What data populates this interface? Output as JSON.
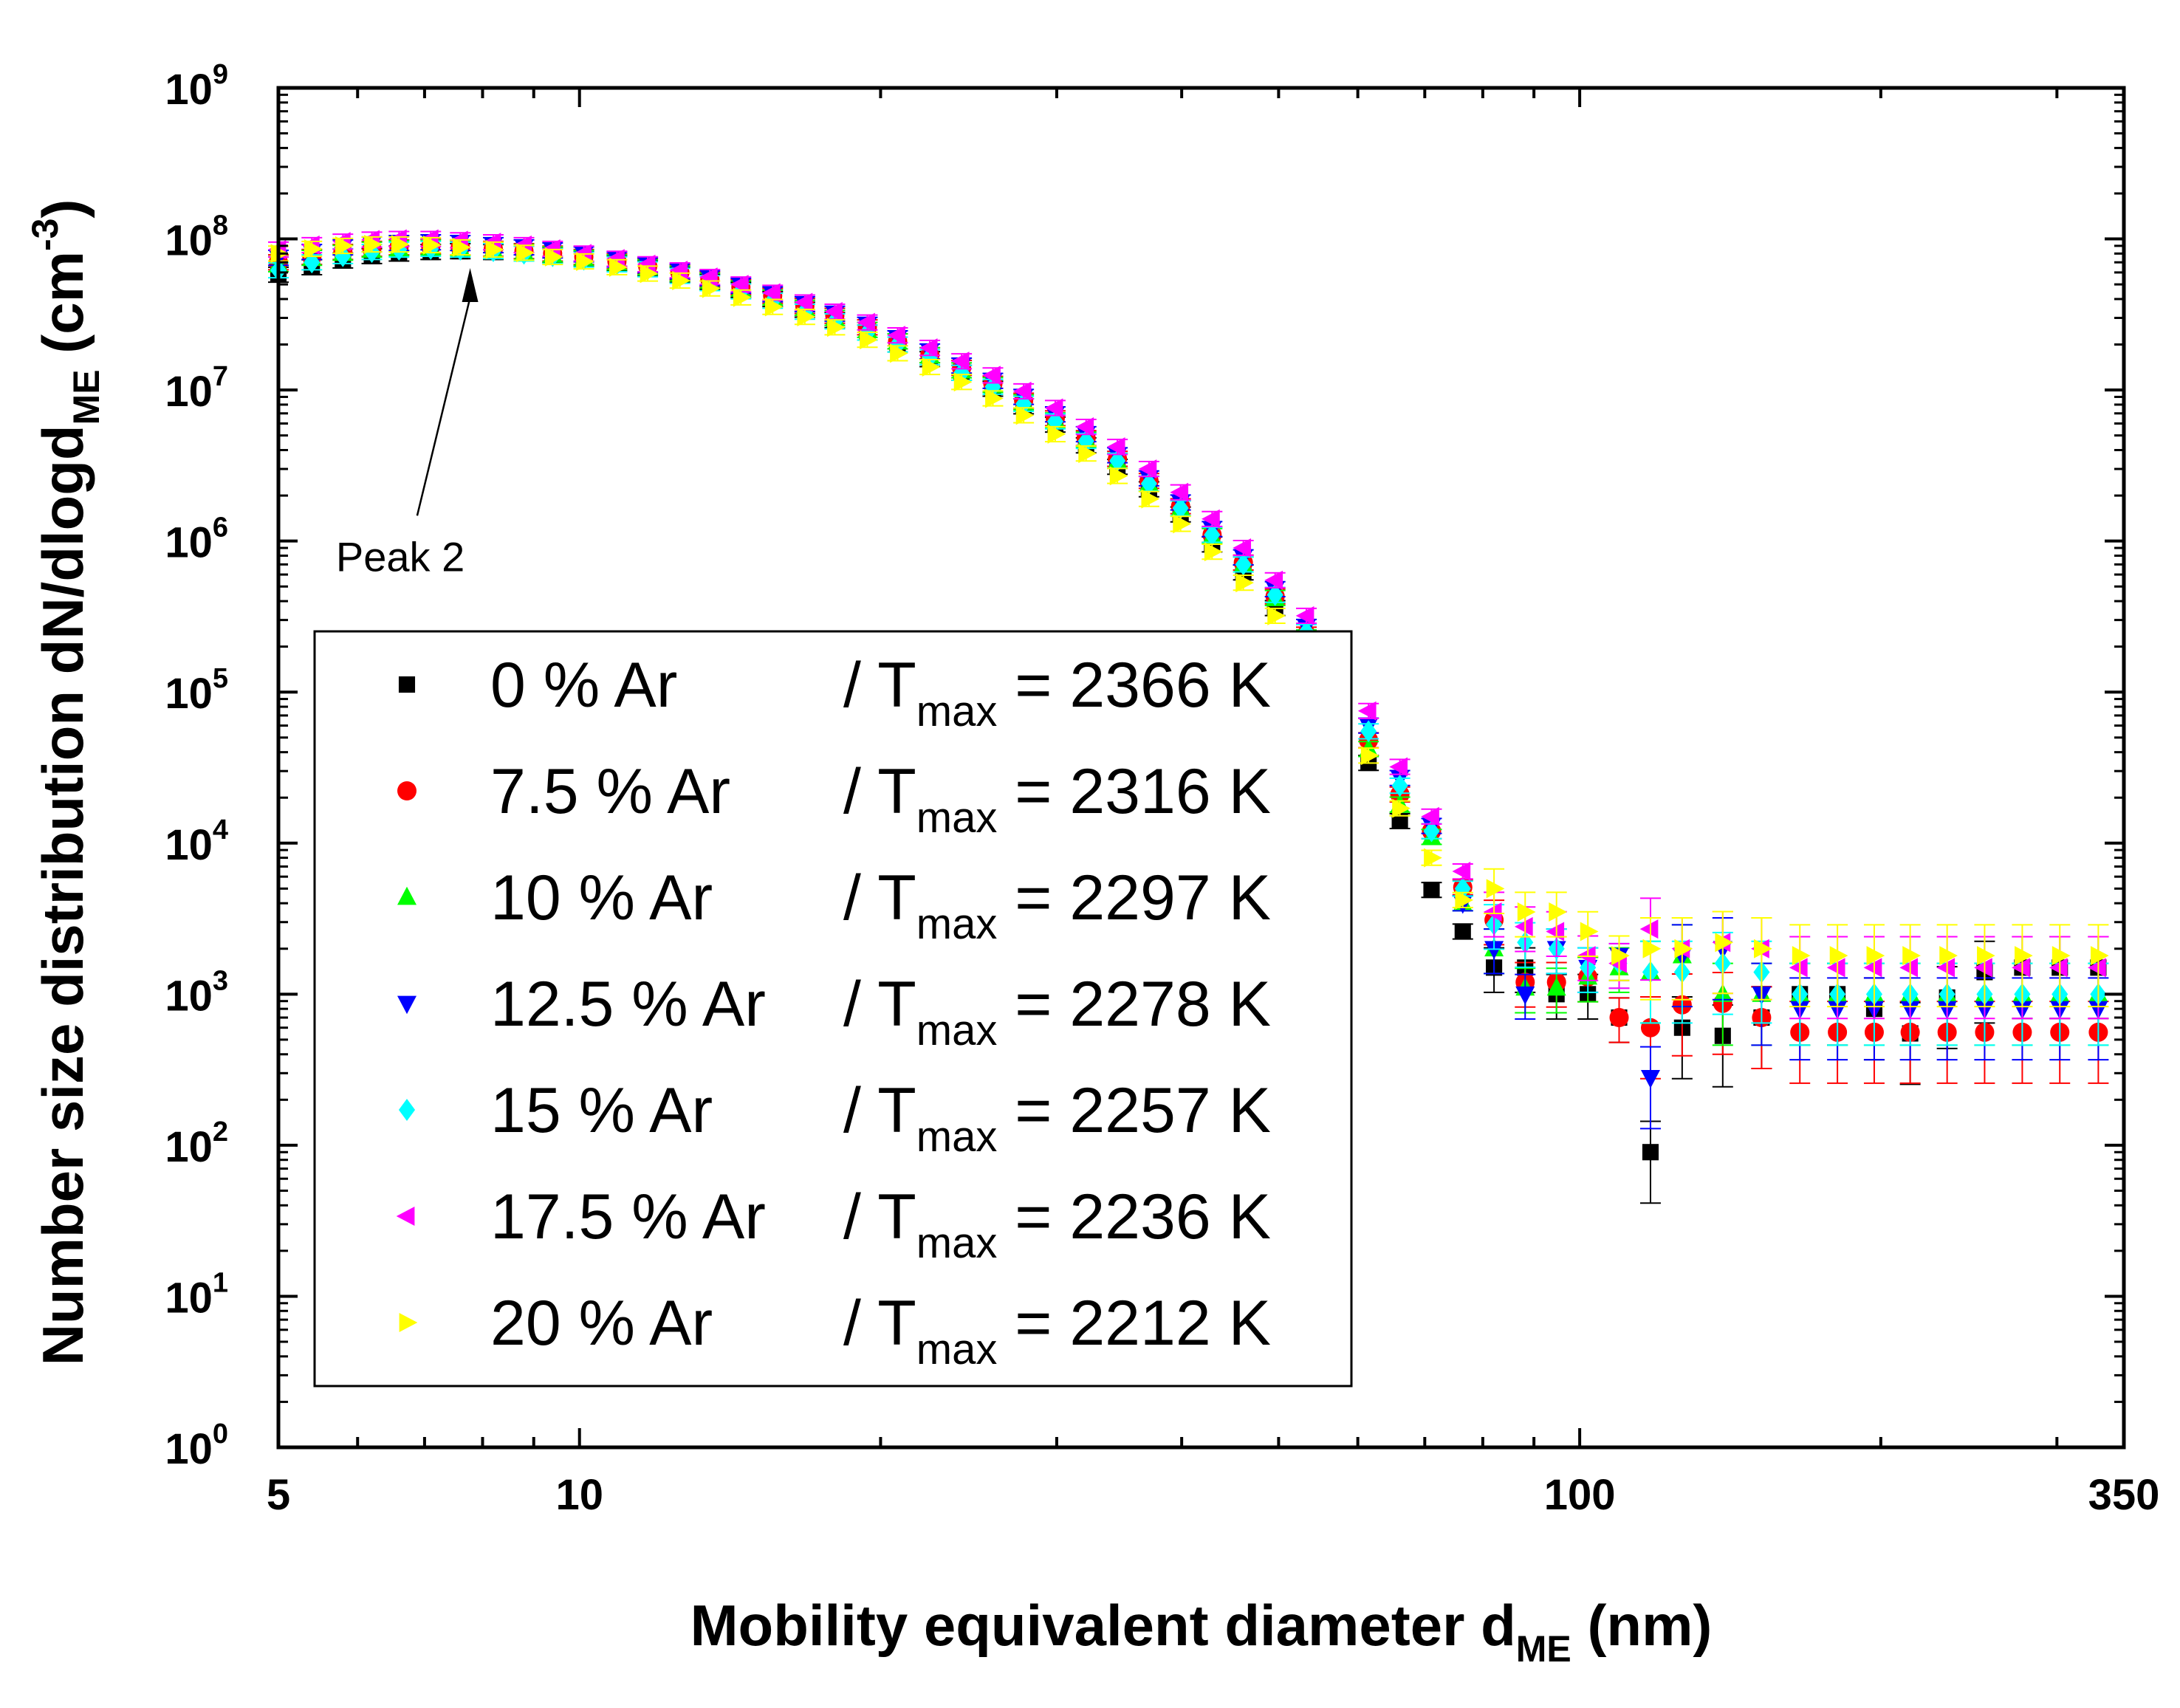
{
  "chart_data": {
    "type": "scatter",
    "title": "",
    "xlabel": "Mobility equivalent diameter d",
    "xlabel_sub": "ME",
    "xlabel_unit": " (nm)",
    "ylabel": "Number size distribution dN/dlogd",
    "ylabel_sub": "ME",
    "ylabel_unit_pre": " (cm",
    "ylabel_unit_sup": "-3",
    "ylabel_unit_post": ")",
    "xscale": "log",
    "yscale": "log",
    "xlim": [
      5,
      350
    ],
    "ylim": [
      1,
      1000000000
    ],
    "x_ticks": [
      {
        "value": 5,
        "label": "5"
      },
      {
        "value": 10,
        "label": "10"
      },
      {
        "value": 100,
        "label": "100"
      },
      {
        "value": 350,
        "label": "350"
      }
    ],
    "y_ticks": [
      {
        "value": 1,
        "base": "10",
        "exp": "0"
      },
      {
        "value": 10,
        "base": "10",
        "exp": "1"
      },
      {
        "value": 100,
        "base": "10",
        "exp": "2"
      },
      {
        "value": 1000,
        "base": "10",
        "exp": "3"
      },
      {
        "value": 10000,
        "base": "10",
        "exp": "4"
      },
      {
        "value": 100000,
        "base": "10",
        "exp": "5"
      },
      {
        "value": 1000000,
        "base": "10",
        "exp": "6"
      },
      {
        "value": 10000000,
        "base": "10",
        "exp": "7"
      },
      {
        "value": 100000000,
        "base": "10",
        "exp": "8"
      },
      {
        "value": 1000000000,
        "base": "10",
        "exp": "9"
      }
    ],
    "annotation": {
      "text": "Peak 2",
      "target": [
        7.8,
        85000000
      ],
      "text_anchor": [
        7.0,
        1050000
      ]
    },
    "legend": {
      "position": "lower-left"
    },
    "x": [
      5.0,
      5.4,
      5.8,
      6.2,
      6.6,
      7.1,
      7.6,
      8.2,
      8.8,
      9.4,
      10.1,
      10.9,
      11.7,
      12.6,
      13.5,
      14.5,
      15.6,
      16.8,
      18.0,
      19.4,
      20.8,
      22.4,
      24.1,
      25.9,
      27.8,
      29.9,
      32.1,
      34.5,
      37.1,
      39.9,
      42.9,
      46.1,
      49.6,
      53.3,
      57.3,
      61.5,
      66.1,
      71.1,
      76.4,
      82.1,
      88.2,
      94.8,
      101.9,
      109.5,
      117.7,
      126.6,
      139.0,
      152.0,
      166.0,
      181.0,
      197.0,
      214.0,
      233.0,
      254.0,
      277.0,
      302.0,
      330.0
    ],
    "series": [
      {
        "name": "0 % Ar",
        "tmax_label": "T",
        "tmax_sub": "max",
        "tmax_value": "= 2366 K",
        "color": "#000000",
        "marker": "square",
        "values": [
          58000000,
          65000000,
          72000000,
          77000000,
          80000000,
          82000000,
          83000000,
          82000000,
          80000000,
          78000000,
          74000000,
          69000000,
          64000000,
          58000000,
          52000000,
          46000000,
          40000000,
          34000000,
          29000000,
          24000000,
          20000000,
          16000000,
          13000000,
          10200000,
          7800000,
          5900000,
          4300000,
          3100000,
          2200000,
          1500000,
          950000,
          620000,
          360000,
          190000,
          88000,
          34000,
          14000,
          4900,
          2600,
          1500,
          1500,
          1000,
          1000,
          700,
          90,
          600,
          530,
          700,
          1000,
          1000,
          800,
          550,
          950,
          1400,
          1500,
          1500,
          1500
        ]
      },
      {
        "name": "7.5 % Ar",
        "tmax_label": "T",
        "tmax_sub": "max",
        "tmax_value": "= 2316 K",
        "color": "#ff0000",
        "marker": "circle",
        "values": [
          70000000,
          76000000,
          82000000,
          86000000,
          88000000,
          89000000,
          88000000,
          86000000,
          83000000,
          80000000,
          76000000,
          71000000,
          66000000,
          60000000,
          54000000,
          48000000,
          42000000,
          36000000,
          31000000,
          26000000,
          21000000,
          17000000,
          14000000,
          11000000,
          8500000,
          6500000,
          4800000,
          3500000,
          2500000,
          1700000,
          1100000,
          720000,
          430000,
          240000,
          120000,
          48000,
          21000,
          12000,
          5100,
          3100,
          1200,
          1200,
          1300,
          700,
          600,
          850,
          870,
          700,
          560,
          560,
          560,
          560,
          560,
          560,
          560,
          560,
          560
        ]
      },
      {
        "name": "10 % Ar",
        "tmax_label": "T",
        "tmax_sub": "max",
        "tmax_value": "= 2297 K",
        "color": "#00ff00",
        "marker": "triangle-up",
        "values": [
          68000000,
          75000000,
          81000000,
          85000000,
          87000000,
          88000000,
          87000000,
          85000000,
          82000000,
          79000000,
          75000000,
          70000000,
          65000000,
          59000000,
          53000000,
          47000000,
          41000000,
          35000000,
          30000000,
          25000000,
          21000000,
          17000000,
          13500000,
          10800000,
          8300000,
          6300000,
          4700000,
          3400000,
          2400000,
          1650000,
          1080000,
          700000,
          420000,
          230000,
          110000,
          42000,
          18000,
          11000,
          4000,
          2000,
          1100,
          1100,
          1300,
          1500,
          1400,
          1800,
          1000,
          1000,
          1000,
          1000,
          1000,
          1000,
          1000,
          1000,
          1000,
          1000,
          1000
        ]
      },
      {
        "name": "12.5 % Ar",
        "tmax_label": "T",
        "tmax_sub": "max",
        "tmax_value": "= 2278 K",
        "color": "#0000ff",
        "marker": "triangle-down",
        "values": [
          75000000,
          82000000,
          88000000,
          92000000,
          94000000,
          95000000,
          94000000,
          91000000,
          88000000,
          84000000,
          79000000,
          73000000,
          67000000,
          61000000,
          55000000,
          49000000,
          43000000,
          37000000,
          32000000,
          27000000,
          22000000,
          18000000,
          14500000,
          11500000,
          9000000,
          6900000,
          5100000,
          3700000,
          2600000,
          1800000,
          1200000,
          780000,
          480000,
          270000,
          140000,
          60000,
          27000,
          13000,
          4000,
          2000,
          1000,
          2000,
          1500,
          1800,
          280,
          1800,
          2000,
          1000,
          800,
          800,
          800,
          800,
          800,
          800,
          800,
          800,
          800
        ]
      },
      {
        "name": "15 % Ar",
        "tmax_label": "T",
        "tmax_sub": "max",
        "tmax_value": "= 2257 K",
        "color": "#00ffff",
        "marker": "diamond",
        "values": [
          62000000,
          70000000,
          77000000,
          82000000,
          85000000,
          86000000,
          85000000,
          83000000,
          80000000,
          77000000,
          73000000,
          68000000,
          63000000,
          57000000,
          51000000,
          45000000,
          39000000,
          33000000,
          28500000,
          24000000,
          20000000,
          16500000,
          13000000,
          10500000,
          8100000,
          6200000,
          4600000,
          3400000,
          2400000,
          1650000,
          1100000,
          700000,
          440000,
          250000,
          125000,
          55000,
          24000,
          12000,
          5000,
          2900,
          2200,
          2000,
          1500,
          1600,
          1400,
          1400,
          1600,
          1400,
          1000,
          1000,
          1000,
          1000,
          1000,
          1000,
          1000,
          1000,
          1000
        ]
      },
      {
        "name": "17.5 % Ar",
        "tmax_label": "T",
        "tmax_sub": "max",
        "tmax_value": "= 2236 K",
        "color": "#ff00ff",
        "marker": "triangle-left",
        "values": [
          85000000,
          91000000,
          96000000,
          99000000,
          100000000,
          100000000,
          98000000,
          95000000,
          91000000,
          86000000,
          80000000,
          74000000,
          68000000,
          62000000,
          56000000,
          50000000,
          44000000,
          38000000,
          33000000,
          28000000,
          23000000,
          19000000,
          15500000,
          12500000,
          9800000,
          7600000,
          5700000,
          4200000,
          3000000,
          2100000,
          1400000,
          900000,
          550000,
          320000,
          170000,
          75000,
          32000,
          15000,
          6500,
          3500,
          2800,
          2600,
          1800,
          1600,
          2700,
          2000,
          2200,
          2000,
          1500,
          1500,
          1500,
          1500,
          1500,
          1500,
          1500,
          1500,
          1500
        ]
      },
      {
        "name": "20 % Ar",
        "tmax_label": "T",
        "tmax_sub": "max",
        "tmax_value": "= 2212 K",
        "color": "#ffff00",
        "marker": "triangle-right",
        "values": [
          80000000,
          86000000,
          90000000,
          92000000,
          92000000,
          91000000,
          88000000,
          85000000,
          81000000,
          76000000,
          71000000,
          65000000,
          59000000,
          53000000,
          47000000,
          41000000,
          35500000,
          30500000,
          26000000,
          21500000,
          17500000,
          14200000,
          11300000,
          8800000,
          6800000,
          5100000,
          3800000,
          2700000,
          1900000,
          1300000,
          850000,
          530000,
          320000,
          180000,
          90000,
          38000,
          17000,
          8000,
          4200,
          5000,
          3500,
          3500,
          2600,
          1800,
          2000,
          2000,
          2200,
          2000,
          1800,
          1800,
          1800,
          1800,
          1800,
          1800,
          1800,
          1800,
          1800
        ]
      }
    ]
  }
}
